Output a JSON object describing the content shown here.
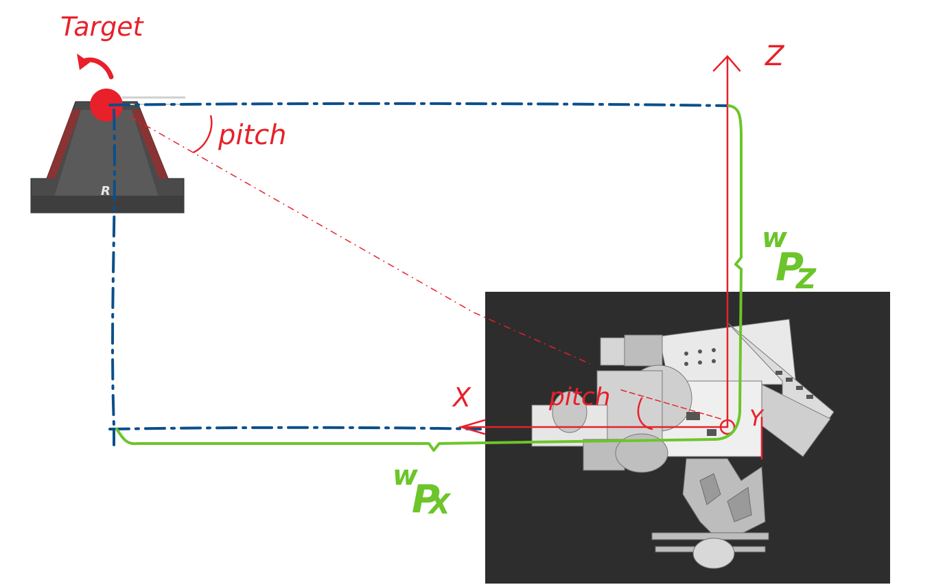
{
  "labels": {
    "target": "Target",
    "pitch_top": "pitch",
    "pitch_robot": "pitch",
    "axis_z": "Z",
    "axis_x": "X",
    "axis_y": "Y",
    "wpz_w": "w",
    "wpz_p": "P",
    "wpz_sub": "Z",
    "wpx_w": "w",
    "wpx_p": "P",
    "wpx_sub": "X",
    "target_logo": "R"
  },
  "colors": {
    "annotation_red": "#e8202a",
    "dash_blue": "#0b4f8a",
    "path_green": "#6cc52a",
    "panel_dark": "#2d2d2d",
    "target_gray": "#4a4a4a"
  }
}
